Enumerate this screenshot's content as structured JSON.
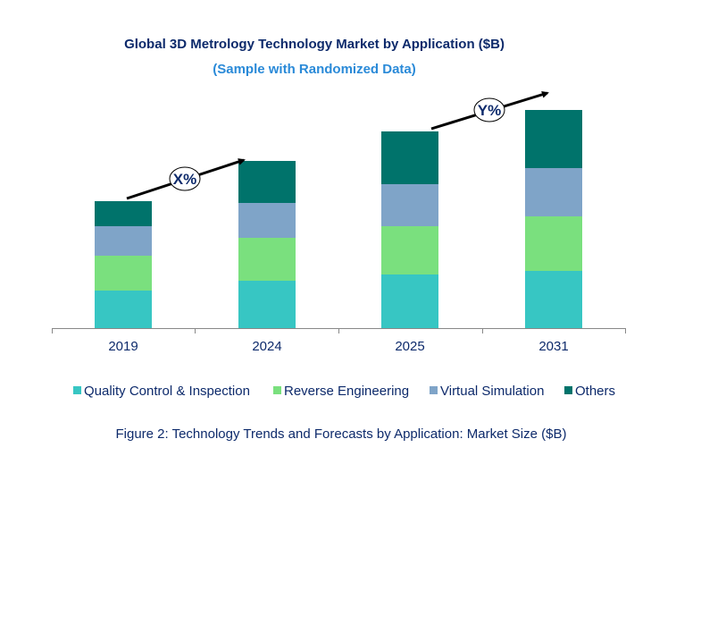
{
  "chart_data": {
    "type": "bar",
    "stacked": true,
    "title": "Global 3D Metrology Technology Market by Application ($B)",
    "subtitle": "(Sample with Randomized Data)",
    "caption": "Figure 2: Technology Trends and Forecasts by Application: Market Size ($B)",
    "categories": [
      "2019",
      "2024",
      "2025",
      "2031"
    ],
    "series": [
      {
        "name": "Quality Control & Inspection",
        "color": "#37c6c3",
        "values": [
          4.2,
          5.3,
          6.0,
          6.4
        ]
      },
      {
        "name": "Reverse Engineering",
        "color": "#7ae07e",
        "values": [
          3.9,
          4.8,
          5.4,
          6.1
        ]
      },
      {
        "name": "Virtual Simulation",
        "color": "#7fa4c8",
        "values": [
          3.3,
          3.9,
          4.7,
          5.4
        ]
      },
      {
        "name": "Others",
        "color": "#00736b",
        "values": [
          2.8,
          4.7,
          5.9,
          6.5
        ]
      }
    ],
    "annotations": [
      {
        "label": "X%",
        "from": "2019",
        "to": "2024"
      },
      {
        "label": "Y%",
        "from": "2025",
        "to": "2031"
      }
    ],
    "y_axis_visible": false,
    "grid": false,
    "legend_position": "bottom",
    "title_color": "#0d2a6b",
    "subtitle_color": "#2a8ad8"
  }
}
